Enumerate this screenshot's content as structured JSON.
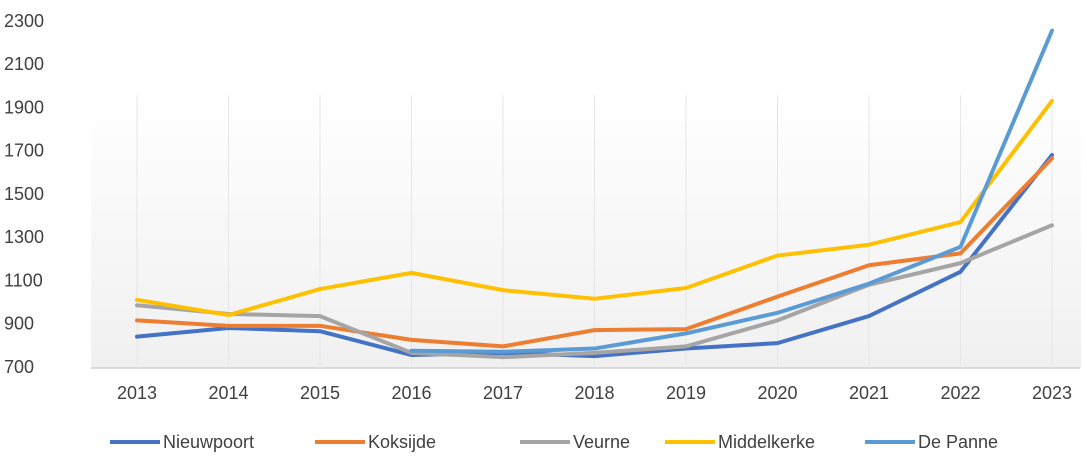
{
  "chart_data": {
    "type": "line",
    "categories": [
      "2013",
      "2014",
      "2015",
      "2016",
      "2017",
      "2018",
      "2019",
      "2020",
      "2021",
      "2022",
      "2023"
    ],
    "series": [
      {
        "name": "Nieuwpoort",
        "color": "#4472c4",
        "values": [
          845,
          885,
          870,
          760,
          770,
          755,
          790,
          815,
          940,
          1145,
          1685
        ]
      },
      {
        "name": "Koksijde",
        "color": "#ed7d31",
        "values": [
          920,
          895,
          895,
          830,
          800,
          875,
          880,
          1030,
          1175,
          1230,
          1670
        ]
      },
      {
        "name": "Veurne",
        "color": "#a5a5a5",
        "values": [
          990,
          950,
          940,
          770,
          750,
          770,
          800,
          920,
          1085,
          1185,
          1360
        ]
      },
      {
        "name": "Middelkerke",
        "color": "#ffc000",
        "values": [
          1015,
          945,
          1065,
          1140,
          1060,
          1020,
          1070,
          1220,
          1270,
          1375,
          1935
        ]
      },
      {
        "name": "De Panne",
        "color": "#5b9bd5",
        "values": [
          null,
          null,
          null,
          780,
          775,
          790,
          860,
          955,
          1090,
          1260,
          2260
        ]
      }
    ],
    "ylim": [
      700,
      2300
    ],
    "yticks": [
      700,
      900,
      1100,
      1300,
      1500,
      1700,
      1900,
      2100,
      2300
    ],
    "grid": true,
    "legend": "bottom"
  }
}
